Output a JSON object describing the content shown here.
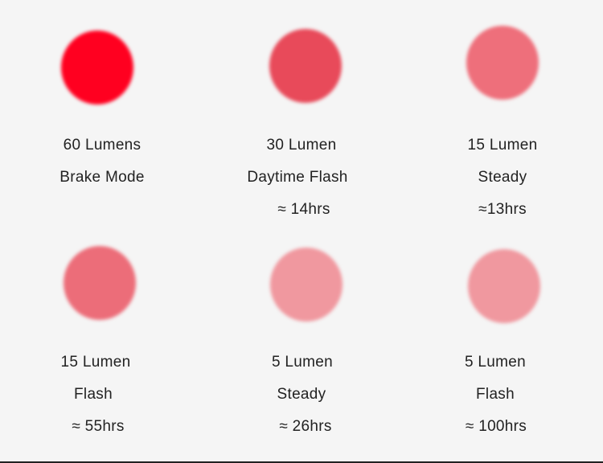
{
  "modes": [
    {
      "lumens": "60 Lumens",
      "mode": "Brake Mode",
      "runtime": "",
      "color": "#ff0020"
    },
    {
      "lumens": "30 Lumen",
      "mode": "Daytime Flash",
      "runtime": "≈ 14hrs",
      "color": "#e84a5a"
    },
    {
      "lumens": "15 Lumen",
      "mode": "Steady",
      "runtime": "≈13hrs",
      "color": "#ee6f7b"
    },
    {
      "lumens": "15 Lumen",
      "mode": "Flash",
      "runtime": "≈ 55hrs",
      "color": "#ec6d79"
    },
    {
      "lumens": "5 Lumen",
      "mode": "Steady",
      "runtime": "≈ 26hrs",
      "color": "#f0989f"
    },
    {
      "lumens": "5 Lumen",
      "mode": "Flash",
      "runtime": "≈ 100hrs",
      "color": "#f0989f"
    }
  ]
}
